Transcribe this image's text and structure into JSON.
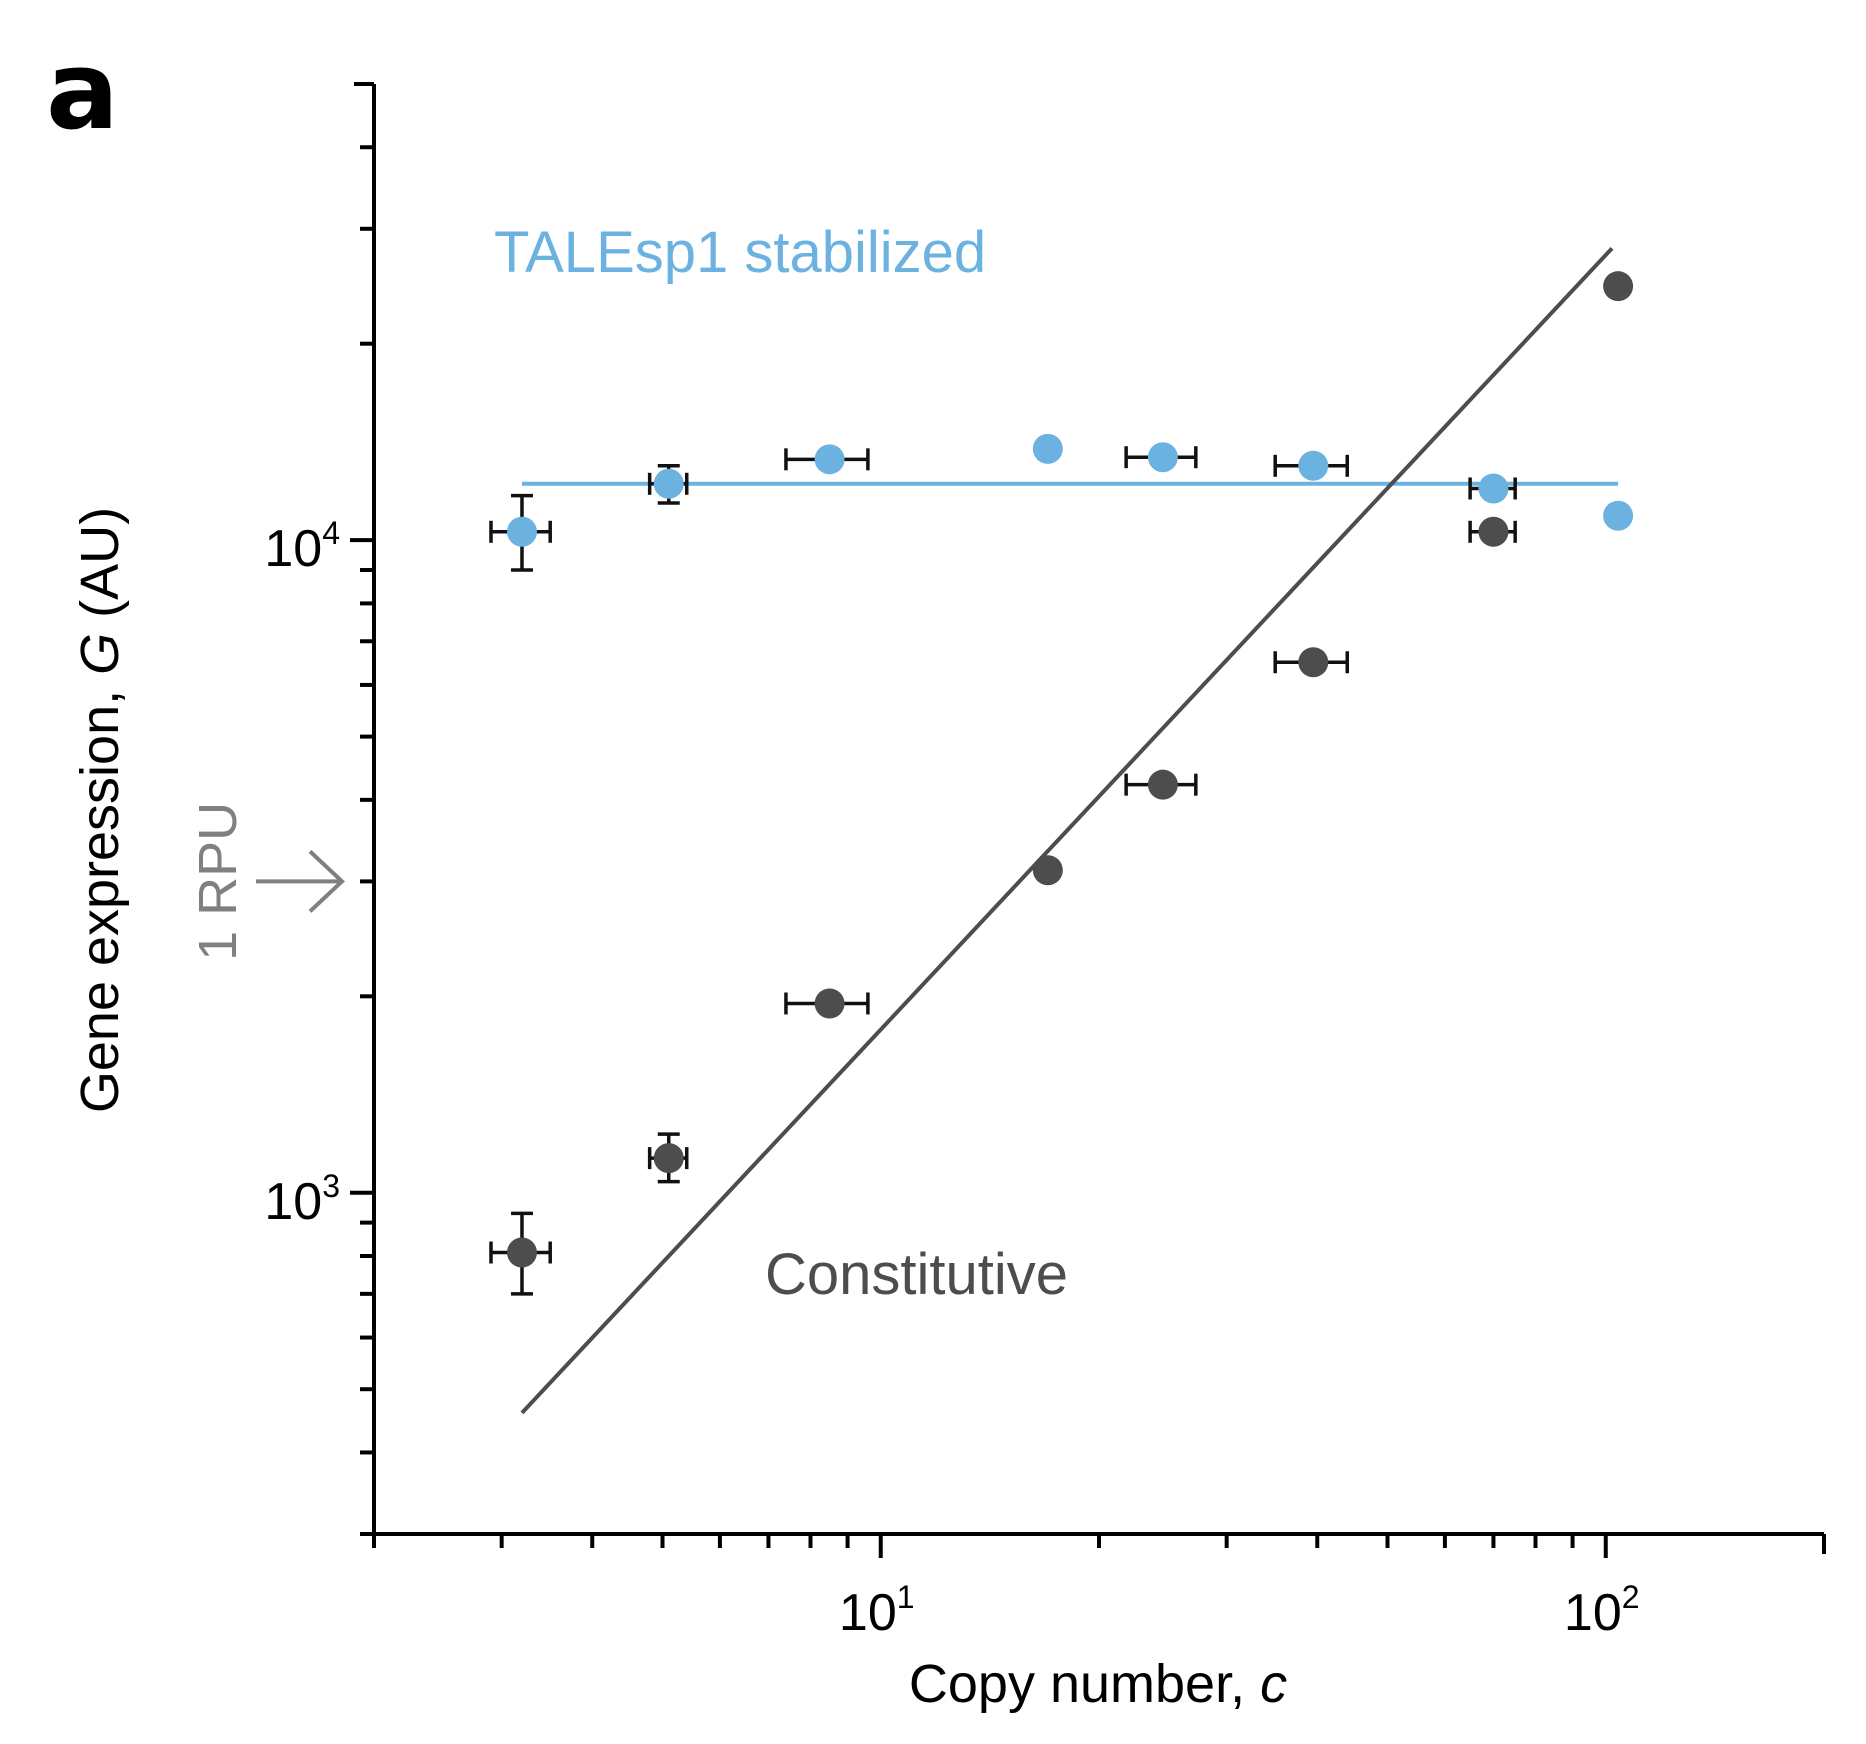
{
  "panel_label": "a",
  "chart_data": {
    "type": "scatter",
    "x_scale": "log",
    "y_scale": "log",
    "xlabel": {
      "text": "Copy number, ",
      "var": "c"
    },
    "ylabel": {
      "text": "Gene expression, ",
      "var": "G",
      "suffix": " (AU)"
    },
    "xlim": [
      2,
      200
    ],
    "ylim": [
      300,
      50000
    ],
    "x_major_ticks": [
      {
        "value": 10,
        "base": "10",
        "exp": "1"
      },
      {
        "value": 100,
        "base": "10",
        "exp": "2"
      }
    ],
    "y_major_ticks": [
      {
        "value": 1000,
        "base": "10",
        "exp": "3"
      },
      {
        "value": 10000,
        "base": "10",
        "exp": "4"
      }
    ],
    "grid": false,
    "reference_marker": {
      "label": "1 RPU",
      "y": 3000,
      "color": "#808080"
    },
    "series": [
      {
        "name": "TALEsp1 stabilized",
        "color": "#6cb2e1",
        "label_position": "upper-left",
        "fit": {
          "type": "constant",
          "x": [
            3.2,
            104
          ],
          "y": [
            12200,
            12200
          ]
        },
        "points": [
          {
            "x": 3.2,
            "y": 10300,
            "xerr": 0.3,
            "yerr": [
              1300,
              1400
            ]
          },
          {
            "x": 5.1,
            "y": 12200,
            "xerr": 0.3,
            "yerr": [
              800,
              800
            ]
          },
          {
            "x": 8.5,
            "y": 13300,
            "xerr": 1.1,
            "yerr": null
          },
          {
            "x": 17,
            "y": 13800,
            "xerr": null,
            "yerr": null
          },
          {
            "x": 24.5,
            "y": 13400,
            "xerr": 2.7,
            "yerr": null
          },
          {
            "x": 39.5,
            "y": 13000,
            "xerr": 4.5,
            "yerr": null
          },
          {
            "x": 70,
            "y": 12000,
            "xerr": 5,
            "yerr": null
          },
          {
            "x": 104,
            "y": 10900,
            "xerr": null,
            "yerr": null
          }
        ]
      },
      {
        "name": "Constitutive",
        "color": "#4d4d4d",
        "label_position": "lower-middle",
        "fit": {
          "type": "power-law",
          "x": [
            3.2,
            102
          ],
          "y": [
            460,
            28000
          ]
        },
        "points": [
          {
            "x": 3.2,
            "y": 810,
            "xerr": 0.3,
            "yerr": [
              110,
              120
            ]
          },
          {
            "x": 5.1,
            "y": 1130,
            "xerr": 0.3,
            "yerr": [
              90,
              100
            ]
          },
          {
            "x": 8.5,
            "y": 1950,
            "xerr": 1.1,
            "yerr": null
          },
          {
            "x": 17,
            "y": 3120,
            "xerr": null,
            "yerr": null
          },
          {
            "x": 24.5,
            "y": 4220,
            "xerr": 2.7,
            "yerr": null
          },
          {
            "x": 39.5,
            "y": 6500,
            "xerr": 4.5,
            "yerr": null
          },
          {
            "x": 70,
            "y": 10300,
            "xerr": 5,
            "yerr": null
          },
          {
            "x": 104,
            "y": 24500,
            "xerr": null,
            "yerr": null
          }
        ]
      }
    ]
  }
}
